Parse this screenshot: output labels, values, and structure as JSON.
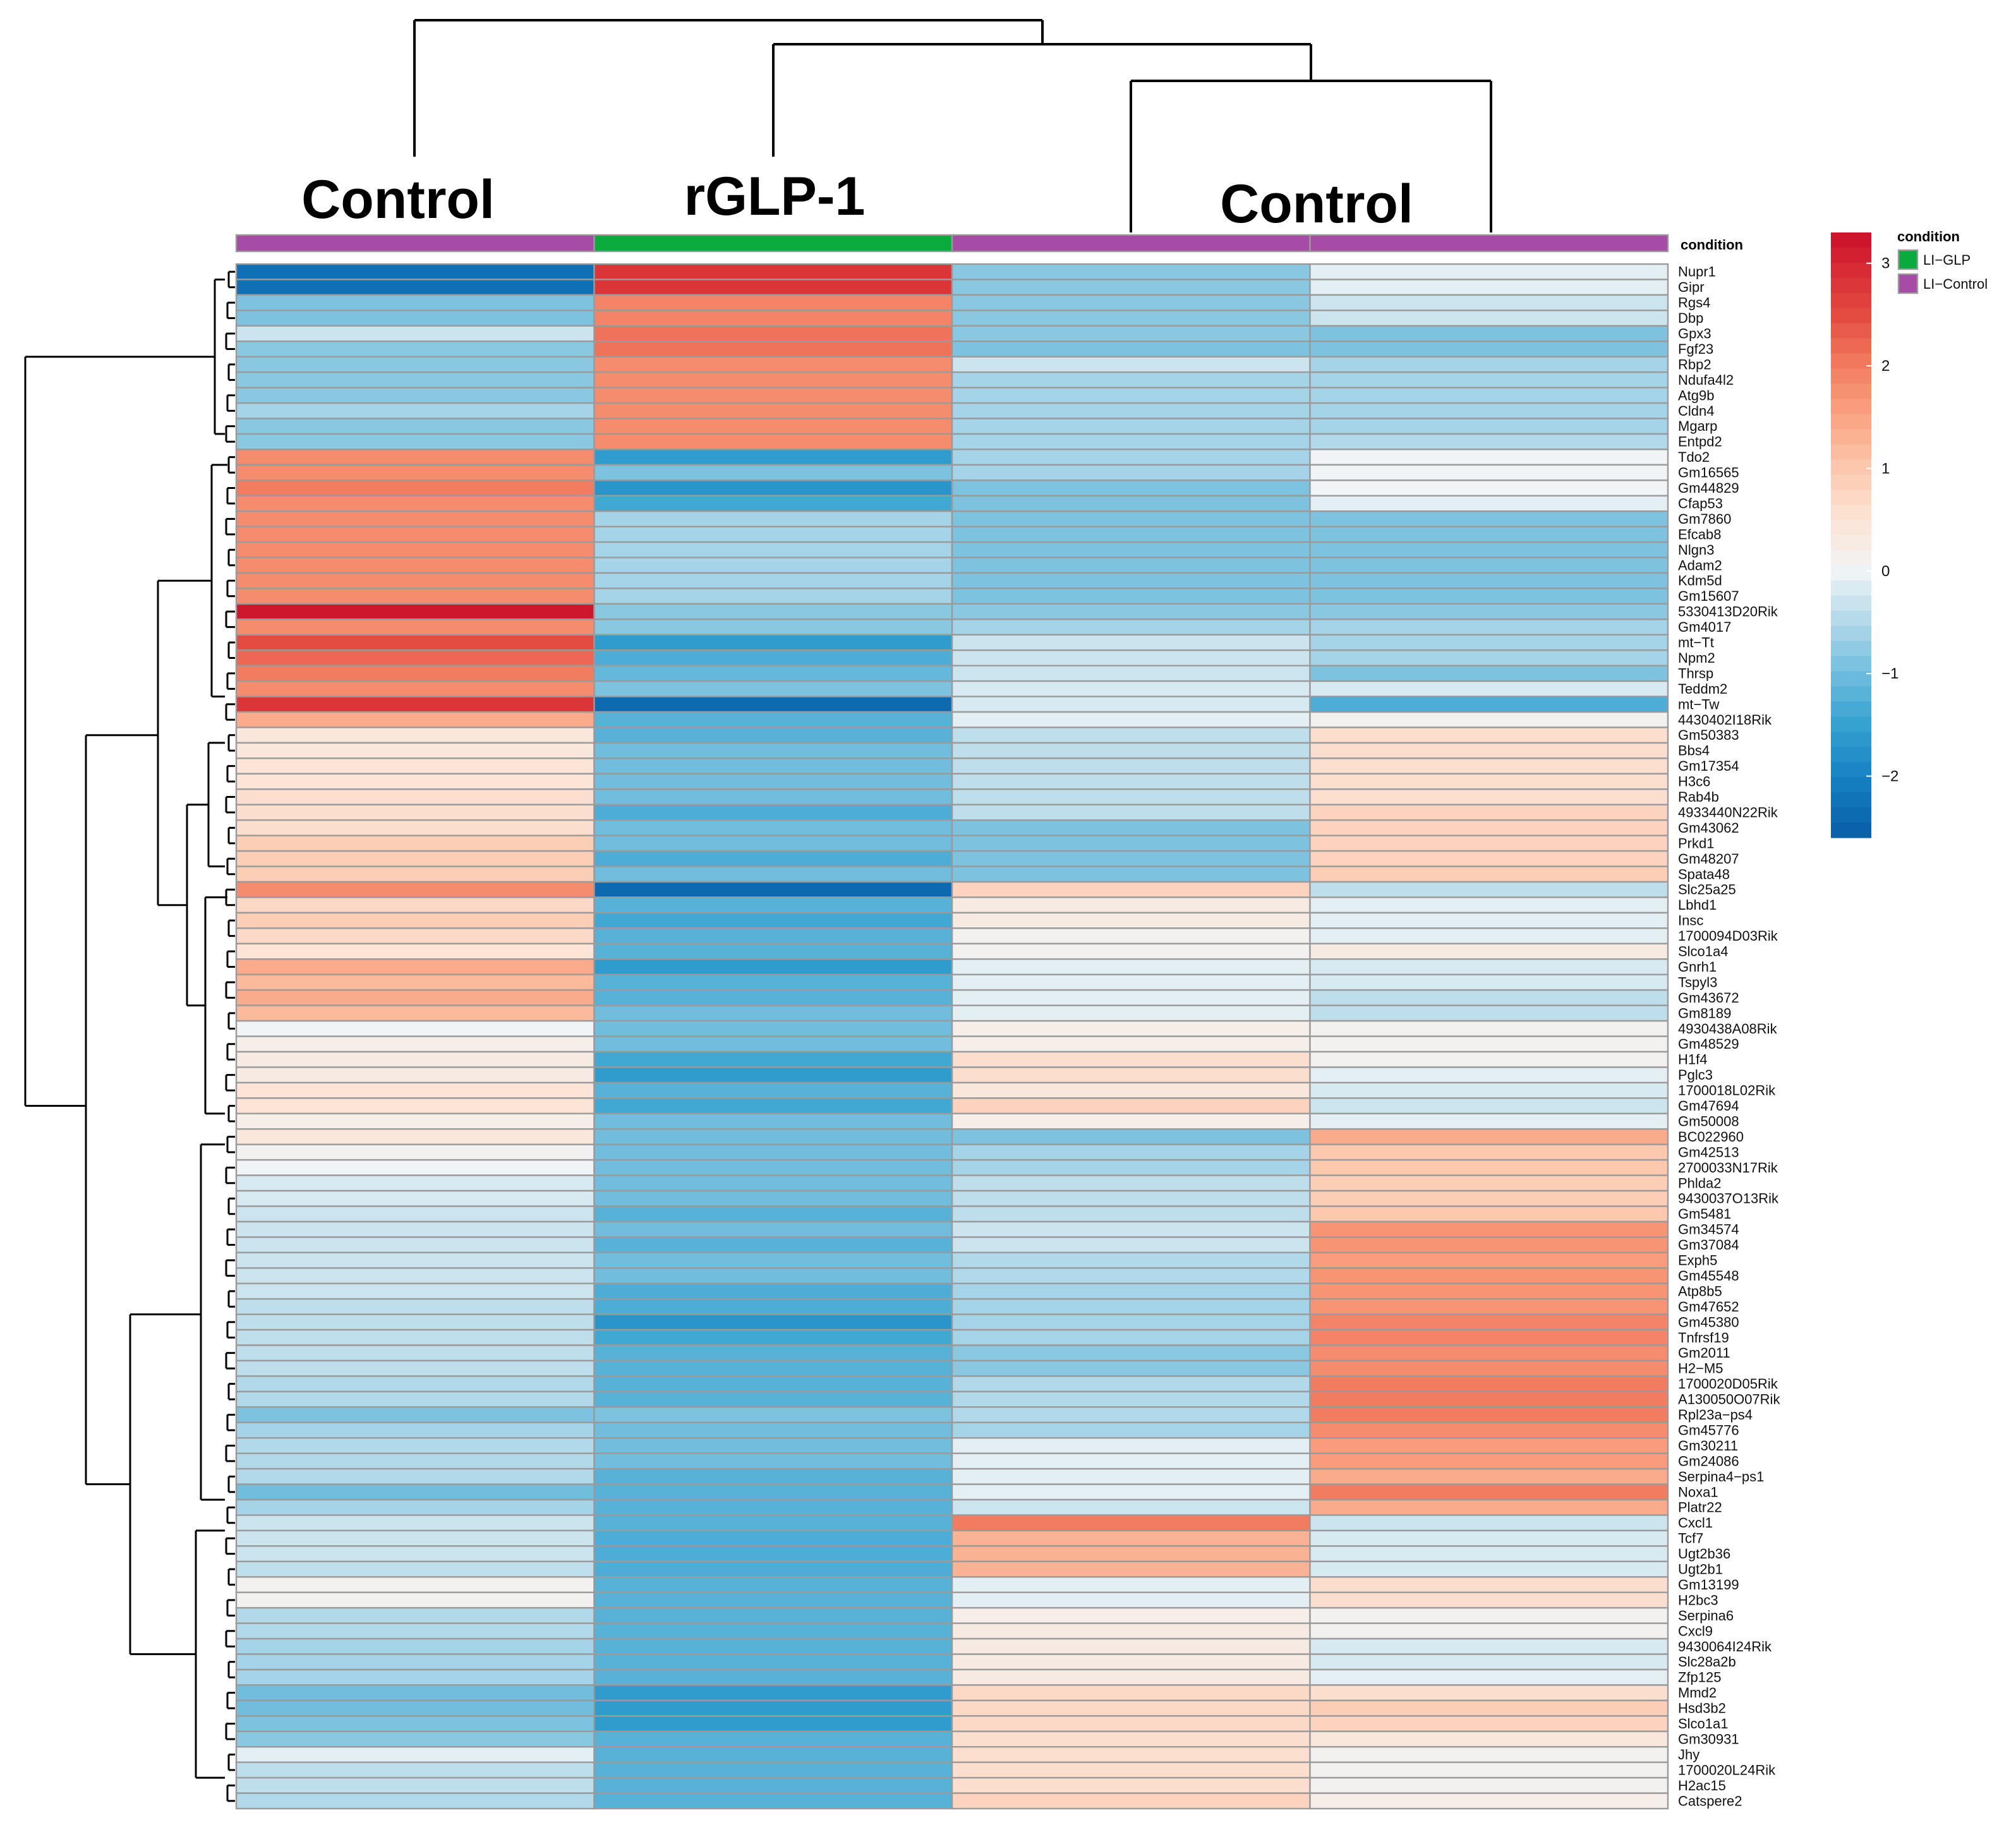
{
  "chart_data": {
    "type": "heatmap",
    "group_labels": [
      "Control",
      "rGLP-1",
      "Control"
    ],
    "annotation_title": "condition",
    "legend": {
      "title": "condition",
      "entries": [
        {
          "label": "LI−GLP",
          "color": "#0aab3c"
        },
        {
          "label": "LI−Control",
          "color": "#a64ba6"
        }
      ]
    },
    "columns": [
      {
        "condition": "LI−Control"
      },
      {
        "condition": "LI−GLP"
      },
      {
        "condition": "LI−Control"
      },
      {
        "condition": "LI−Control"
      }
    ],
    "colorscale": {
      "min": -2.6,
      "max": 3.3,
      "ticks": [
        3,
        2,
        1,
        0,
        -1,
        -2
      ],
      "tick_labels": [
        "3",
        "2",
        "1",
        "0",
        "−1",
        "−2"
      ]
    },
    "genes": [
      "Nupr1",
      "Gipr",
      "Rgs4",
      "Dbp",
      "Gpx3",
      "Fgf23",
      "Rbp2",
      "Ndufa4l2",
      "Atg9b",
      "Cldn4",
      "Mgarp",
      "Entpd2",
      "Tdo2",
      "Gm16565",
      "Gm44829",
      "Cfap53",
      "Gm7860",
      "Efcab8",
      "Nlgn3",
      "Adam2",
      "Kdm5d",
      "Gm15607",
      "5330413D20Rik",
      "Gm4017",
      "mt−Tt",
      "Npm2",
      "Thrsp",
      "Teddm2",
      "mt−Tw",
      "4430402I18Rik",
      "Gm50383",
      "Bbs4",
      "Gm17354",
      "H3c6",
      "Rab4b",
      "4933440N22Rik",
      "Gm43062",
      "Prkd1",
      "Gm48207",
      "Spata48",
      "Slc25a25",
      "Lbhd1",
      "Insc",
      "1700094D03Rik",
      "Slco1a4",
      "Gnrh1",
      "Tspyl3",
      "Gm43672",
      "Gm8189",
      "4930438A08Rik",
      "Gm48529",
      "H1f4",
      "Pglc3",
      "1700018L02Rik",
      "Gm47694",
      "Gm50008",
      "BC022960",
      "Gm42513",
      "2700033N17Rik",
      "Phlda2",
      "9430037O13Rik",
      "Gm5481",
      "Gm34574",
      "Gm37084",
      "Exph5",
      "Gm45548",
      "Atp8b5",
      "Gm47652",
      "Gm45380",
      "Tnfrsf19",
      "Gm2011",
      "H2−M5",
      "1700020D05Rik",
      "A130050O07Rik",
      "Rpl23a−ps4",
      "Gm45776",
      "Gm30211",
      "Gm24086",
      "Serpina4−ps1",
      "Noxa1",
      "Platr22",
      "Cxcl1",
      "Tcf7",
      "Ugt2b36",
      "Ugt2b1",
      "Gm13199",
      "H2bc3",
      "Serpina6",
      "Cxcl9",
      "9430064I24Rik",
      "Slc28a2b",
      "Zfp125",
      "Mmd2",
      "Hsd3b2",
      "Slco1a1",
      "Gm30931",
      "Jhy",
      "1700020L24Rik",
      "H2ac15",
      "Catspere2"
    ],
    "values": [
      [
        -2.3,
        2.8,
        -0.8,
        -0.1
      ],
      [
        -2.3,
        2.8,
        -0.8,
        -0.1
      ],
      [
        -0.9,
        1.9,
        -0.8,
        -0.3
      ],
      [
        -0.9,
        1.9,
        -0.8,
        -0.3
      ],
      [
        -0.3,
        2.1,
        -0.8,
        -0.9
      ],
      [
        -0.8,
        2.1,
        -0.9,
        -0.9
      ],
      [
        -0.8,
        1.8,
        -0.3,
        -0.6
      ],
      [
        -0.8,
        1.8,
        -0.6,
        -0.6
      ],
      [
        -0.8,
        1.8,
        -0.6,
        -0.6
      ],
      [
        -0.6,
        1.8,
        -0.6,
        -0.6
      ],
      [
        -0.8,
        1.8,
        -0.6,
        -0.6
      ],
      [
        -0.8,
        1.8,
        -0.6,
        -0.5
      ],
      [
        1.8,
        -1.6,
        -0.6,
        0.0
      ],
      [
        1.8,
        -0.9,
        -0.6,
        0.0
      ],
      [
        2.0,
        -1.7,
        -0.9,
        0.0
      ],
      [
        1.8,
        -1.4,
        -0.9,
        -0.1
      ],
      [
        1.8,
        -0.6,
        -0.9,
        -0.9
      ],
      [
        1.8,
        -0.6,
        -0.9,
        -0.9
      ],
      [
        1.8,
        -0.6,
        -0.9,
        -0.9
      ],
      [
        1.8,
        -0.6,
        -0.9,
        -0.9
      ],
      [
        1.8,
        -0.6,
        -0.9,
        -0.9
      ],
      [
        1.8,
        -0.6,
        -0.9,
        -0.9
      ],
      [
        3.2,
        -0.8,
        -0.8,
        -0.8
      ],
      [
        1.8,
        -0.8,
        -0.6,
        -0.6
      ],
      [
        2.5,
        -1.6,
        -0.3,
        -0.6
      ],
      [
        2.2,
        -1.3,
        -0.3,
        -0.6
      ],
      [
        2.0,
        -1.1,
        -0.3,
        -0.9
      ],
      [
        1.8,
        -0.9,
        -0.2,
        -0.2
      ],
      [
        2.8,
        -2.4,
        -0.2,
        -1.3
      ],
      [
        1.4,
        -1.2,
        -0.1,
        0.1
      ],
      [
        0.4,
        -1.2,
        -0.4,
        0.6
      ],
      [
        0.4,
        -1.0,
        -0.4,
        0.6
      ],
      [
        0.5,
        -1.0,
        -0.4,
        0.6
      ],
      [
        0.5,
        -1.0,
        -0.4,
        0.6
      ],
      [
        0.6,
        -1.0,
        -0.4,
        0.6
      ],
      [
        0.6,
        -1.3,
        -0.4,
        0.8
      ],
      [
        0.6,
        -1.0,
        -0.9,
        0.8
      ],
      [
        0.9,
        -1.0,
        -0.9,
        0.8
      ],
      [
        0.9,
        -1.3,
        -0.9,
        0.8
      ],
      [
        0.9,
        -1.0,
        -0.9,
        0.9
      ],
      [
        1.8,
        -2.4,
        0.8,
        -0.4
      ],
      [
        0.7,
        -1.2,
        0.3,
        -0.1
      ],
      [
        0.9,
        -1.4,
        0.3,
        -0.1
      ],
      [
        0.7,
        -1.2,
        0.1,
        -0.1
      ],
      [
        0.5,
        -1.2,
        0.1,
        0.3
      ],
      [
        1.4,
        -1.6,
        -0.1,
        -0.2
      ],
      [
        1.2,
        -1.2,
        -0.1,
        -0.2
      ],
      [
        1.4,
        -1.2,
        -0.1,
        -0.4
      ],
      [
        1.2,
        -1.0,
        -0.1,
        -0.4
      ],
      [
        0.0,
        -1.0,
        0.2,
        0.1
      ],
      [
        0.2,
        -1.0,
        0.2,
        0.1
      ],
      [
        0.3,
        -1.4,
        0.6,
        0.1
      ],
      [
        0.3,
        -1.6,
        0.6,
        -0.1
      ],
      [
        0.5,
        -1.2,
        0.4,
        -0.2
      ],
      [
        0.5,
        -1.4,
        0.8,
        -0.3
      ],
      [
        0.2,
        -1.0,
        0.2,
        -0.1
      ],
      [
        0.4,
        -1.0,
        -0.9,
        1.4
      ],
      [
        0.1,
        -1.0,
        -0.6,
        1.0
      ],
      [
        0.0,
        -1.0,
        -0.6,
        1.0
      ],
      [
        -0.2,
        -1.0,
        -0.4,
        0.9
      ],
      [
        -0.2,
        -1.0,
        -0.4,
        0.9
      ],
      [
        -0.3,
        -1.2,
        -0.4,
        1.0
      ],
      [
        -0.3,
        -1.0,
        -0.3,
        1.7
      ],
      [
        -0.3,
        -1.2,
        -0.3,
        1.7
      ],
      [
        -0.3,
        -1.0,
        -0.5,
        1.6
      ],
      [
        -0.3,
        -1.0,
        -0.5,
        1.7
      ],
      [
        -0.3,
        -1.3,
        -0.6,
        1.7
      ],
      [
        -0.4,
        -1.3,
        -0.6,
        1.7
      ],
      [
        -0.4,
        -1.7,
        -0.6,
        1.9
      ],
      [
        -0.4,
        -1.4,
        -0.6,
        1.9
      ],
      [
        -0.4,
        -1.2,
        -0.8,
        1.8
      ],
      [
        -0.4,
        -1.2,
        -0.8,
        1.8
      ],
      [
        -0.5,
        -1.2,
        -0.5,
        2.0
      ],
      [
        -0.5,
        -1.2,
        -0.5,
        2.0
      ],
      [
        -0.9,
        -0.9,
        -0.5,
        2.0
      ],
      [
        -0.6,
        -1.0,
        -0.6,
        1.8
      ],
      [
        -0.5,
        -1.0,
        -0.1,
        1.6
      ],
      [
        -0.5,
        -1.0,
        -0.1,
        1.6
      ],
      [
        -0.5,
        -1.2,
        -0.1,
        1.4
      ],
      [
        -1.0,
        -1.2,
        -0.1,
        2.0
      ],
      [
        -0.6,
        -1.2,
        -0.3,
        1.4
      ],
      [
        -0.3,
        -1.2,
        2.0,
        -0.3
      ],
      [
        -0.3,
        -1.3,
        1.3,
        -0.2
      ],
      [
        -0.3,
        -1.3,
        1.3,
        -0.2
      ],
      [
        -0.4,
        -1.3,
        1.3,
        -0.2
      ],
      [
        0.1,
        -1.2,
        -0.1,
        0.6
      ],
      [
        0.1,
        -1.2,
        -0.1,
        0.6
      ],
      [
        -0.5,
        -1.2,
        0.2,
        0.1
      ],
      [
        -0.5,
        -1.2,
        0.3,
        0.1
      ],
      [
        -0.6,
        -1.2,
        0.3,
        -0.2
      ],
      [
        -0.6,
        -1.2,
        0.3,
        -0.2
      ],
      [
        -0.6,
        -1.2,
        0.3,
        -0.1
      ],
      [
        -1.0,
        -1.6,
        0.7,
        0.6
      ],
      [
        -1.0,
        -1.6,
        0.7,
        0.9
      ],
      [
        -0.9,
        -1.6,
        0.7,
        0.8
      ],
      [
        -0.8,
        -1.2,
        0.6,
        0.4
      ],
      [
        -0.1,
        -1.2,
        0.6,
        0.1
      ],
      [
        -0.4,
        -1.2,
        0.6,
        0.1
      ],
      [
        -0.4,
        -1.2,
        0.6,
        0.1
      ],
      [
        -0.5,
        -1.2,
        0.8,
        0.2
      ]
    ]
  }
}
